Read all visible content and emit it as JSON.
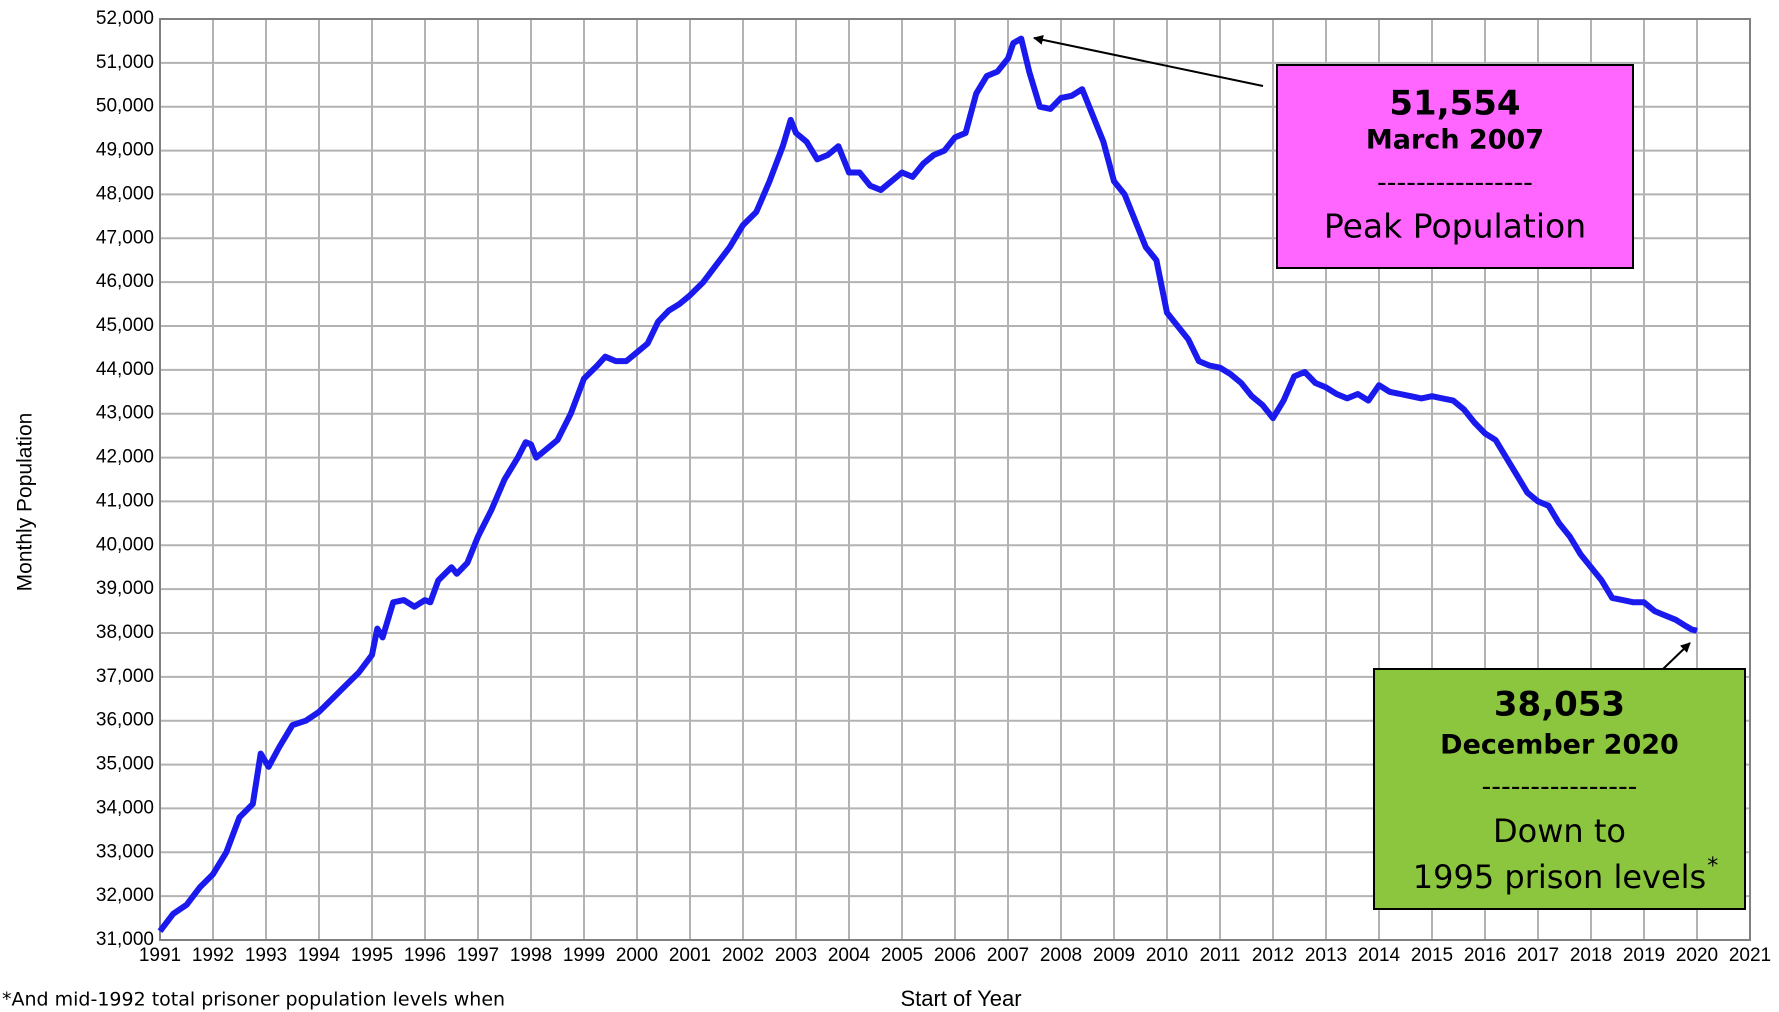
{
  "chart_data": {
    "type": "line",
    "y_label": "Monthly Population",
    "x_label": "Start of Year",
    "footnote": "*And mid-1992 total prisoner population levels when",
    "grid": true,
    "xlim": [
      1991,
      2021
    ],
    "xticks": [
      1991,
      1992,
      1993,
      1994,
      1995,
      1996,
      1997,
      1998,
      1999,
      2000,
      2001,
      2002,
      2003,
      2004,
      2005,
      2006,
      2007,
      2008,
      2009,
      2010,
      2011,
      2012,
      2013,
      2014,
      2015,
      2016,
      2017,
      2018,
      2019,
      2020,
      2021
    ],
    "ylim": [
      31000,
      52000
    ],
    "yticks": [
      {
        "value": 31000,
        "label": "31,000"
      },
      {
        "value": 32000,
        "label": "32,000"
      },
      {
        "value": 33000,
        "label": "33,000"
      },
      {
        "value": 34000,
        "label": "34,000"
      },
      {
        "value": 35000,
        "label": "35,000"
      },
      {
        "value": 36000,
        "label": "36,000"
      },
      {
        "value": 37000,
        "label": "37,000"
      },
      {
        "value": 38000,
        "label": "38,000"
      },
      {
        "value": 39000,
        "label": "39,000"
      },
      {
        "value": 40000,
        "label": "40,000"
      },
      {
        "value": 41000,
        "label": "41,000"
      },
      {
        "value": 42000,
        "label": "42,000"
      },
      {
        "value": 43000,
        "label": "43,000"
      },
      {
        "value": 44000,
        "label": "44,000"
      },
      {
        "value": 45000,
        "label": "45,000"
      },
      {
        "value": 46000,
        "label": "46,000"
      },
      {
        "value": 47000,
        "label": "47,000"
      },
      {
        "value": 48000,
        "label": "48,000"
      },
      {
        "value": 49000,
        "label": "49,000"
      },
      {
        "value": 50000,
        "label": "50,000"
      },
      {
        "value": 51000,
        "label": "51,000"
      },
      {
        "value": 52000,
        "label": "52,000"
      }
    ],
    "series": [
      {
        "color": "#1a1aee",
        "x": [
          1991.0,
          1991.25,
          1991.5,
          1991.75,
          1992.0,
          1992.25,
          1992.5,
          1992.75,
          1992.9,
          1993.05,
          1993.25,
          1993.5,
          1993.75,
          1994.0,
          1994.25,
          1994.5,
          1994.75,
          1995.0,
          1995.1,
          1995.2,
          1995.4,
          1995.6,
          1995.8,
          1996.0,
          1996.1,
          1996.25,
          1996.5,
          1996.6,
          1996.8,
          1997.0,
          1997.25,
          1997.5,
          1997.75,
          1997.9,
          1998.0,
          1998.1,
          1998.3,
          1998.5,
          1998.75,
          1999.0,
          1999.25,
          1999.4,
          1999.6,
          1999.8,
          2000.0,
          2000.2,
          2000.4,
          2000.6,
          2000.8,
          2001.0,
          2001.25,
          2001.5,
          2001.75,
          2002.0,
          2002.25,
          2002.5,
          2002.75,
          2002.9,
          2003.0,
          2003.2,
          2003.4,
          2003.6,
          2003.8,
          2004.0,
          2004.2,
          2004.4,
          2004.6,
          2004.8,
          2005.0,
          2005.2,
          2005.4,
          2005.6,
          2005.8,
          2006.0,
          2006.2,
          2006.4,
          2006.6,
          2006.8,
          2007.0,
          2007.1,
          2007.25,
          2007.4,
          2007.6,
          2007.8,
          2008.0,
          2008.2,
          2008.4,
          2008.6,
          2008.8,
          2009.0,
          2009.2,
          2009.4,
          2009.6,
          2009.8,
          2010.0,
          2010.2,
          2010.4,
          2010.6,
          2010.8,
          2011.0,
          2011.2,
          2011.4,
          2011.6,
          2011.8,
          2012.0,
          2012.2,
          2012.4,
          2012.6,
          2012.8,
          2013.0,
          2013.2,
          2013.4,
          2013.6,
          2013.8,
          2014.0,
          2014.2,
          2014.4,
          2014.6,
          2014.8,
          2015.0,
          2015.2,
          2015.4,
          2015.6,
          2015.8,
          2016.0,
          2016.2,
          2016.4,
          2016.6,
          2016.8,
          2017.0,
          2017.2,
          2017.4,
          2017.6,
          2017.8,
          2018.0,
          2018.2,
          2018.4,
          2018.6,
          2018.8,
          2019.0,
          2019.2,
          2019.4,
          2019.6,
          2019.8,
          2019.9,
          2020.0
        ],
        "values": [
          31200,
          31600,
          31800,
          32200,
          32500,
          33000,
          33800,
          34100,
          35250,
          34950,
          35400,
          35900,
          36000,
          36200,
          36500,
          36800,
          37100,
          37500,
          38100,
          37900,
          38700,
          38750,
          38600,
          38750,
          38700,
          39200,
          39500,
          39350,
          39600,
          40200,
          40800,
          41500,
          42000,
          42350,
          42300,
          42000,
          42200,
          42400,
          43000,
          43800,
          44100,
          44300,
          44200,
          44200,
          44400,
          44600,
          45100,
          45350,
          45500,
          45700,
          46000,
          46400,
          46800,
          47300,
          47600,
          48300,
          49100,
          49700,
          49400,
          49200,
          48800,
          48900,
          49100,
          48500,
          48500,
          48200,
          48100,
          48300,
          48500,
          48400,
          48700,
          48900,
          49000,
          49300,
          49400,
          50300,
          50700,
          50800,
          51100,
          51450,
          51554,
          50800,
          50000,
          49950,
          50200,
          50250,
          50400,
          49800,
          49200,
          48300,
          48000,
          47400,
          46800,
          46500,
          45300,
          45000,
          44700,
          44200,
          44100,
          44050,
          43900,
          43700,
          43400,
          43200,
          42900,
          43300,
          43850,
          43950,
          43700,
          43600,
          43450,
          43350,
          43450,
          43300,
          43650,
          43500,
          43450,
          43400,
          43350,
          43400,
          43350,
          43300,
          43100,
          42800,
          42550,
          42400,
          42000,
          41600,
          41200,
          41000,
          40900,
          40500,
          40200,
          39800,
          39500,
          39200,
          38800,
          38750,
          38700,
          38700,
          38500,
          38400,
          38300,
          38150,
          38080,
          38053
        ]
      }
    ],
    "annotations": [
      {
        "value": "51,554",
        "date": "March 2007",
        "divider": "----------------",
        "lines": [
          "Peak Population"
        ],
        "color": "#ff66ff"
      },
      {
        "value": "38,053",
        "date": "December 2020",
        "divider": "----------------",
        "lines": [
          "Down to",
          "1995 prison levels"
        ],
        "mark": "*",
        "color": "#8cc63f"
      }
    ]
  }
}
